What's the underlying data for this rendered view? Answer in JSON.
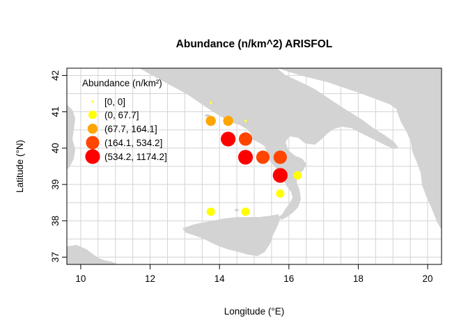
{
  "chart_data": {
    "type": "scatter",
    "title": "Abundance  (n/km^2) ARISFOL",
    "xlabel": "Longitude (°E)",
    "ylabel": "Latitude (°N)",
    "xlim": [
      9.6,
      20.4
    ],
    "ylim": [
      36.8,
      42.2
    ],
    "x_ticks": [
      10,
      12,
      14,
      16,
      18,
      20
    ],
    "y_ticks": [
      37,
      38,
      39,
      40,
      41,
      42
    ],
    "grid_x_step": 0.5,
    "grid_y_step": 0.5,
    "grid": true,
    "background_land_color": "#d3d3d3",
    "legend": {
      "title": "Abundance (n/km²)",
      "placement": "top-left",
      "classes": [
        {
          "label": "[0, 0]",
          "color": "#ffff66"
        },
        {
          "label": "(0, 67.7]",
          "color": "#ffff00"
        },
        {
          "label": "(67.7, 164.1]",
          "color": "#ffa500"
        },
        {
          "label": "(164.1, 534.2]",
          "color": "#ff4500"
        },
        {
          "label": "(534.2, 1174.2]",
          "color": "#ff0000"
        }
      ]
    },
    "points": [
      {
        "lon": 13.75,
        "lat": 41.25,
        "class": 0
      },
      {
        "lon": 14.75,
        "lat": 40.75,
        "class": 0
      },
      {
        "lon": 16.25,
        "lat": 39.25,
        "class": 1
      },
      {
        "lon": 15.75,
        "lat": 38.75,
        "class": 1
      },
      {
        "lon": 13.75,
        "lat": 38.25,
        "class": 1
      },
      {
        "lon": 14.75,
        "lat": 38.25,
        "class": 1
      },
      {
        "lon": 13.75,
        "lat": 40.75,
        "class": 2
      },
      {
        "lon": 14.25,
        "lat": 40.75,
        "class": 2
      },
      {
        "lon": 14.75,
        "lat": 40.25,
        "class": 3
      },
      {
        "lon": 15.25,
        "lat": 39.75,
        "class": 3
      },
      {
        "lon": 15.75,
        "lat": 39.75,
        "class": 3
      },
      {
        "lon": 14.25,
        "lat": 40.25,
        "class": 4
      },
      {
        "lon": 14.75,
        "lat": 39.75,
        "class": 4
      },
      {
        "lon": 15.75,
        "lat": 39.25,
        "class": 4
      }
    ]
  }
}
